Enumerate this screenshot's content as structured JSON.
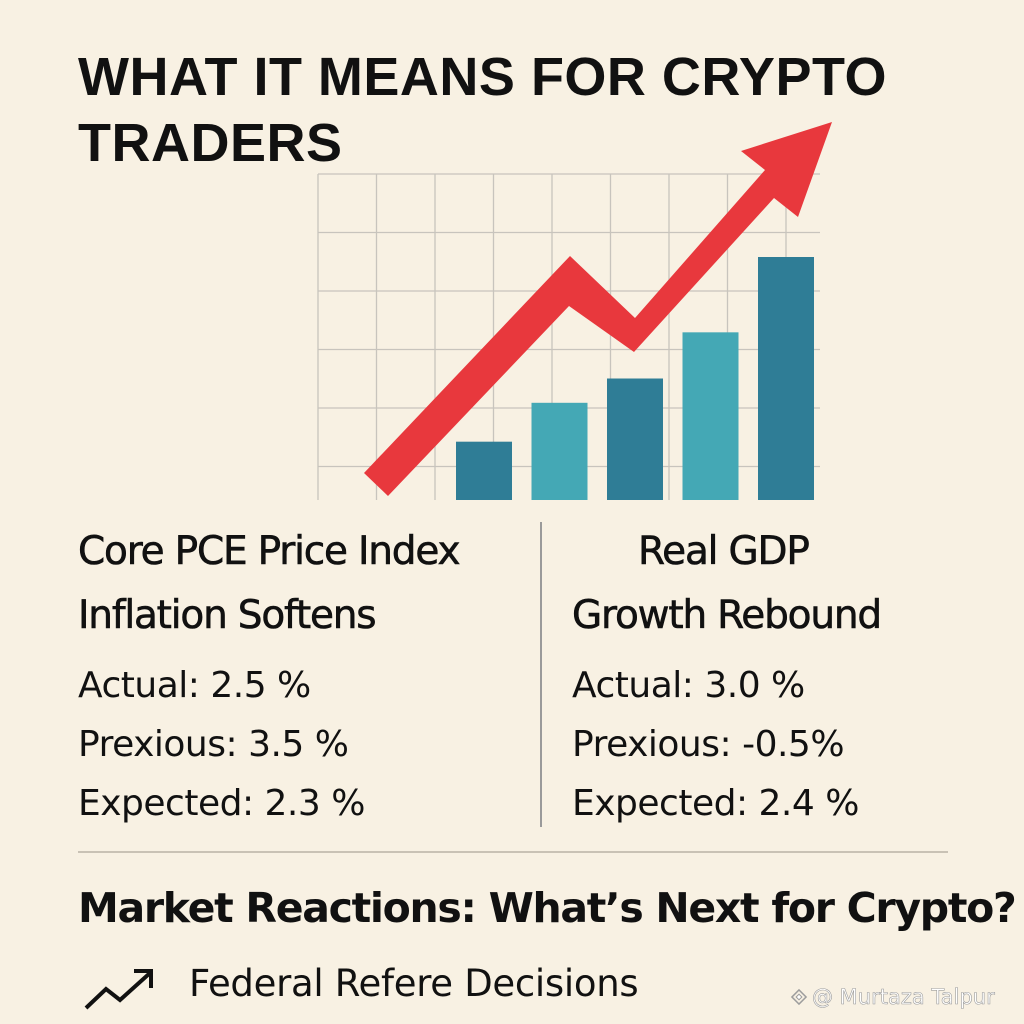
{
  "title": "WHAT IT MEANS FOR CRYPTO TRADERS",
  "colors": {
    "background": "#f8f1e3",
    "arrow": "#e8383d",
    "bar_dark": "#2f7d96",
    "bar_light": "#44a8b5",
    "grid": "#c8c4bd"
  },
  "illustration": {
    "bars": [
      {
        "relative_height": 0.24,
        "tone": "dark"
      },
      {
        "relative_height": 0.4,
        "tone": "light"
      },
      {
        "relative_height": 0.5,
        "tone": "dark"
      },
      {
        "relative_height": 0.69,
        "tone": "light"
      },
      {
        "relative_height": 1.0,
        "tone": "dark"
      }
    ],
    "arrow_icon": "trend-up-arrow"
  },
  "left": {
    "heading_line1": "Core PCE Price Index",
    "heading_line2": "Inflation Softens",
    "actual": "Actual: 2.5 %",
    "previous": "Prexious: 3.5 %",
    "expected": "Expected: 2.3 %"
  },
  "right": {
    "heading_line1": "Real GDP",
    "heading_line2": "Growth Rebound",
    "actual": "Actual: 3.0 %",
    "previous": "Prexious: -0.5%",
    "expected": "Expected: 2.4 %"
  },
  "market": {
    "title": "Market Reactions: What’s Next for Crypto?",
    "bullet_icon": "trend-up-icon",
    "bullet_text": "Federal Refere Decisions"
  },
  "watermark": {
    "text": "@ Murtaza Talpur"
  }
}
